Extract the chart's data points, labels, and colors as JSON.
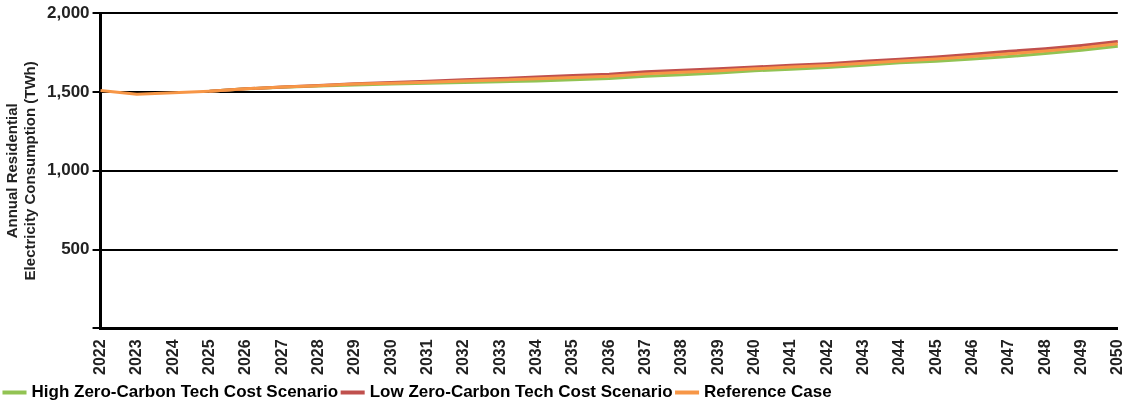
{
  "chart_data": {
    "type": "line",
    "ylabel": "Annual Residential Electricity Consumption (TWh)",
    "categories": [
      "2022",
      "2023",
      "2024",
      "2025",
      "2026",
      "2027",
      "2028",
      "2029",
      "2030",
      "2031",
      "2032",
      "2033",
      "2034",
      "2035",
      "2036",
      "2037",
      "2038",
      "2039",
      "2040",
      "2041",
      "2042",
      "2043",
      "2044",
      "2045",
      "2046",
      "2047",
      "2048",
      "2049",
      "2050"
    ],
    "series": [
      {
        "name": "High Zero-Carbon Tech Cost Scenario",
        "color": "#92c353",
        "values": [
          null,
          null,
          null,
          1505,
          1520,
          1530,
          1538,
          1545,
          1550,
          1555,
          1560,
          1565,
          1570,
          1578,
          1585,
          1600,
          1610,
          1620,
          1635,
          1645,
          1655,
          1670,
          1685,
          1695,
          1710,
          1725,
          1745,
          1765,
          1790
        ]
      },
      {
        "name": "Low Zero-Carbon Tech Cost Scenario",
        "color": "#c0504d",
        "values": [
          null,
          null,
          null,
          1505,
          1520,
          1532,
          1542,
          1552,
          1560,
          1568,
          1578,
          1585,
          1595,
          1605,
          1612,
          1628,
          1638,
          1648,
          1658,
          1670,
          1680,
          1695,
          1708,
          1722,
          1740,
          1758,
          1775,
          1795,
          1820
        ]
      },
      {
        "name": "Reference Case",
        "color": "#f79646",
        "values": [
          1510,
          1485,
          1495,
          1505,
          1520,
          1531,
          1540,
          1550,
          1556,
          1562,
          1570,
          1576,
          1584,
          1592,
          1600,
          1615,
          1625,
          1635,
          1647,
          1658,
          1668,
          1683,
          1697,
          1710,
          1726,
          1742,
          1760,
          1780,
          1806
        ]
      }
    ],
    "ylim": [
      0,
      2000
    ],
    "yticks": [
      {
        "value": 0,
        "label": null
      },
      500,
      {
        "value": 1000,
        "label": "1,000"
      },
      {
        "value": 1500,
        "label": "1,500"
      },
      {
        "value": 2000,
        "label": "2,000"
      }
    ],
    "grid": "y",
    "legend": "bottom",
    "marker": "none",
    "line_style": "solid"
  }
}
